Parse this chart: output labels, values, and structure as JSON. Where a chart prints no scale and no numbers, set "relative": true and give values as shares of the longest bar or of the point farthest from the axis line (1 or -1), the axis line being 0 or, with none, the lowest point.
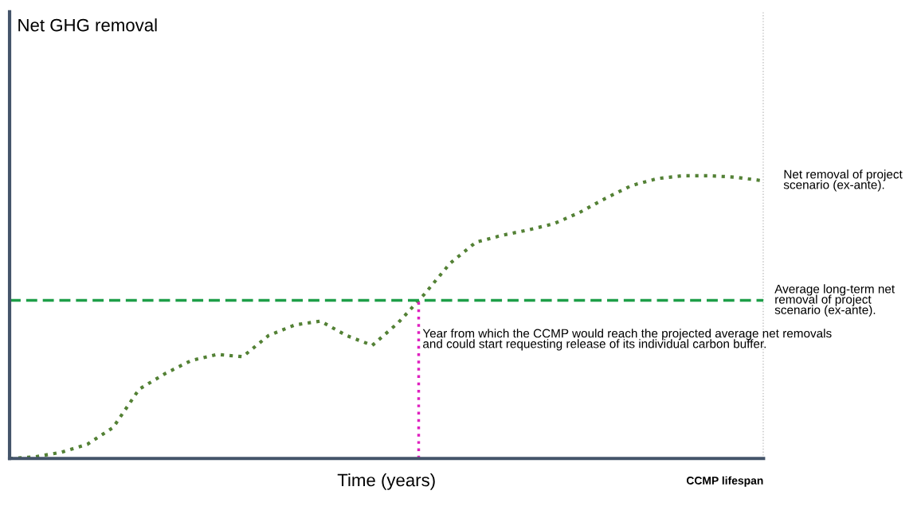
{
  "chart_data": {
    "type": "line",
    "relative": true,
    "xlabel": "Time (years)",
    "categories": [
      null,
      null,
      null,
      null,
      null,
      null,
      null,
      null,
      null,
      null,
      null,
      null,
      null,
      null,
      null,
      null,
      null,
      null,
      null,
      null,
      null,
      null,
      null,
      null,
      null,
      null,
      null,
      null,
      null,
      null
    ],
    "series": [
      {
        "name": "Net removal of project scenario (ex-ante).",
        "color": "#538135",
        "line_style": "dotted",
        "values": [
          0,
          0.006,
          0.022,
          0.05,
          0.11,
          0.245,
          0.3,
          0.346,
          0.368,
          0.36,
          0.435,
          0.472,
          0.486,
          0.435,
          0.4,
          0.48,
          0.58,
          0.69,
          0.765,
          0.789,
          0.808,
          0.83,
          0.87,
          0.92,
          0.965,
          0.99,
          1.0,
          1.0,
          0.995,
          0.983
        ]
      }
    ],
    "ref_lines": [
      {
        "axis": "y",
        "value": 0.559,
        "label": "Average long-term net removal of project scenario (ex-ante).",
        "color": "#1e9e48",
        "line_style": "dashed"
      }
    ],
    "annotations": [
      "Net GHG removal",
      "Year from which the CCMP would reach the projected average net removals and could start requesting release of its individual carbon buffer.",
      "CCMP lifespan"
    ],
    "grid": false,
    "legend": false
  }
}
